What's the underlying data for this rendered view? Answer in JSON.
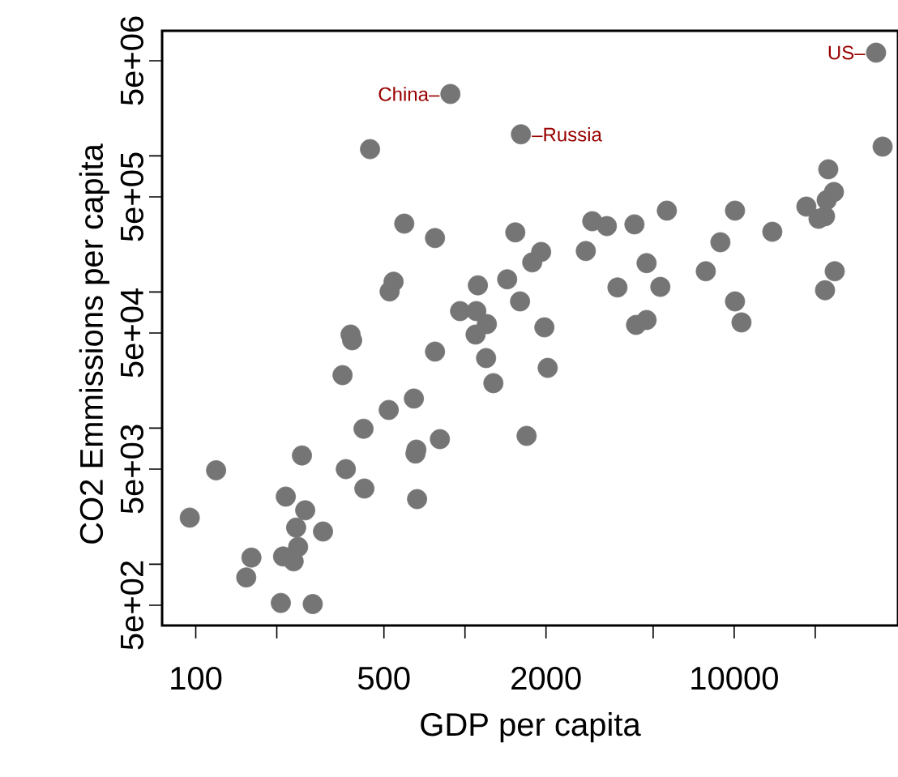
{
  "chart_data": {
    "type": "scatter",
    "xlabel": "GDP per capita",
    "ylabel": "CO2 Emmissions per capita",
    "log": "xy",
    "marker": "circle",
    "xlim": [
      75,
      40600
    ],
    "ylim": [
      355,
      8300000
    ],
    "xticks": [
      100,
      {
        "value": 200,
        "label": null
      },
      500,
      {
        "value": 1000,
        "label": null
      },
      2000,
      {
        "value": 5000,
        "label": null
      },
      10000,
      {
        "value": 20000,
        "label": null
      }
    ],
    "yticks": [
      {
        "value": 500,
        "label": "5e+02"
      },
      {
        "value": 1000,
        "label": null
      },
      {
        "value": 5000,
        "label": "5e+03"
      },
      {
        "value": 10000,
        "label": null
      },
      {
        "value": 50000,
        "label": "5e+04"
      },
      {
        "value": 100000,
        "label": null
      },
      {
        "value": 500000,
        "label": "5e+05"
      },
      {
        "value": 1000000,
        "label": null
      },
      {
        "value": 5000000,
        "label": "5e+06"
      }
    ],
    "series": [
      {
        "color": "#757575",
        "x": [
          95,
          119,
          154,
          161,
          207,
          211,
          216,
          231,
          236,
          240,
          248,
          255,
          272,
          297,
          351,
          361,
          376,
          381,
          420,
          423,
          444,
          521,
          525,
          543,
          595,
          646,
          655,
          660,
          664,
          774,
          774,
          807,
          883,
          959,
          1095,
          1102,
          1117,
          1198,
          1206,
          1275,
          1435,
          1538,
          1602,
          1614,
          1694,
          1778,
          1919,
          1973,
          2029,
          2811,
          2971,
          3366,
          3685,
          4261,
          4320,
          4727,
          4727,
          5318,
          5623,
          7845,
          8888,
          10070,
          10070,
          10645,
          13856,
          18540,
          20570,
          21750,
          21750,
          22060,
          22360,
          23470,
          23630,
          33660,
          35590
        ],
        "values": [
          2200,
          4900,
          800,
          1120,
          520,
          1140,
          3140,
          1050,
          1860,
          1340,
          6300,
          2490,
          510,
          1740,
          24500,
          5000,
          48700,
          44200,
          9900,
          3600,
          1120000,
          13600,
          101000,
          119000,
          318000,
          16500,
          6500,
          6950,
          3010,
          36500,
          249000,
          8300,
          2850000,
          72400,
          48700,
          72400,
          112000,
          32700,
          58100,
          21400,
          124000,
          274000,
          85300,
          1440000,
          8770,
          165000,
          197000,
          55000,
          27700,
          200000,
          331000,
          305000,
          108000,
          314000,
          57300,
          163000,
          62300,
          109000,
          396000,
          142000,
          232000,
          396000,
          85300,
          59800,
          277000,
          424000,
          345000,
          360000,
          103000,
          473000,
          797000,
          543000,
          142000,
          5730000,
          1170000
        ]
      }
    ],
    "annotations": [
      {
        "text": "China–",
        "x": 883,
        "y": 2850000
      },
      {
        "text": "–Russia",
        "x": 1614,
        "y": 1440000
      },
      {
        "text": "US–",
        "x": 33660,
        "y": 5730000
      }
    ]
  }
}
